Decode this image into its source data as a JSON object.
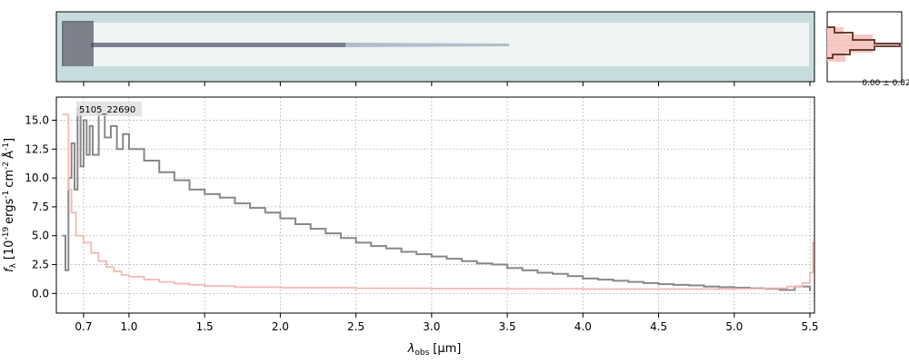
{
  "chart_data": {
    "type": "line",
    "annotation": "5105_22690",
    "xlabel_sym": "λ",
    "xlabel_sub": "obs",
    "xlabel_unit": "[μm]",
    "ylabel_sym": "f",
    "ylabel_sub": "λ",
    "ylabel_unit": "[10",
    "ylabel_exp": "-19",
    "ylabel_rest": "ergs",
    "ylabel_exp2": "-1",
    "ylabel_rest2": "cm",
    "ylabel_exp3": "-2",
    "ylabel_rest3": "Å",
    "ylabel_exp4": "-1",
    "ylabel_close": "]",
    "x_ticks": [
      0.7,
      1.0,
      1.5,
      2.0,
      2.5,
      3.0,
      3.5,
      4.0,
      4.5,
      5.0,
      5.5
    ],
    "x_tick_labels": [
      "0.7",
      "1.0",
      "1.5",
      "2.0",
      "2.5",
      "3.0",
      "3.5",
      "4.0",
      "4.5",
      "5.0",
      "5.5"
    ],
    "y_ticks": [
      0.0,
      2.5,
      5.0,
      7.5,
      10.0,
      12.5,
      15.0
    ],
    "y_tick_labels": [
      "0.0",
      "2.5",
      "5.0",
      "7.5",
      "10.0",
      "12.5",
      "15.0"
    ],
    "xlim": [
      0.52,
      5.53
    ],
    "ylim": [
      -1.7,
      17.0
    ],
    "grid": true,
    "series": [
      {
        "color": "#888888",
        "points": [
          [
            0.56,
            5
          ],
          [
            0.58,
            2
          ],
          [
            0.6,
            10
          ],
          [
            0.62,
            13
          ],
          [
            0.64,
            9
          ],
          [
            0.66,
            16
          ],
          [
            0.68,
            11
          ],
          [
            0.7,
            15
          ],
          [
            0.72,
            12
          ],
          [
            0.74,
            14.5
          ],
          [
            0.76,
            12
          ],
          [
            0.8,
            15.5
          ],
          [
            0.84,
            13.5
          ],
          [
            0.88,
            14.5
          ],
          [
            0.92,
            12.5
          ],
          [
            0.96,
            13.8
          ],
          [
            1.0,
            12.5
          ],
          [
            1.1,
            11.5
          ],
          [
            1.2,
            10.5
          ],
          [
            1.3,
            9.8
          ],
          [
            1.4,
            9.0
          ],
          [
            1.5,
            8.6
          ],
          [
            1.6,
            8.3
          ],
          [
            1.7,
            7.8
          ],
          [
            1.8,
            7.4
          ],
          [
            1.9,
            7.0
          ],
          [
            2.0,
            6.5
          ],
          [
            2.1,
            6.0
          ],
          [
            2.2,
            5.6
          ],
          [
            2.3,
            5.2
          ],
          [
            2.4,
            4.8
          ],
          [
            2.5,
            4.4
          ],
          [
            2.6,
            4.1
          ],
          [
            2.7,
            3.9
          ],
          [
            2.8,
            3.6
          ],
          [
            2.9,
            3.4
          ],
          [
            3.0,
            3.2
          ],
          [
            3.1,
            3.0
          ],
          [
            3.2,
            2.8
          ],
          [
            3.3,
            2.6
          ],
          [
            3.4,
            2.5
          ],
          [
            3.5,
            2.2
          ],
          [
            3.6,
            2.0
          ],
          [
            3.7,
            1.8
          ],
          [
            3.8,
            1.7
          ],
          [
            3.9,
            1.5
          ],
          [
            4.0,
            1.3
          ],
          [
            4.1,
            1.2
          ],
          [
            4.2,
            1.1
          ],
          [
            4.3,
            1.0
          ],
          [
            4.4,
            0.9
          ],
          [
            4.5,
            0.8
          ],
          [
            4.6,
            0.75
          ],
          [
            4.7,
            0.7
          ],
          [
            4.8,
            0.6
          ],
          [
            4.9,
            0.55
          ],
          [
            5.0,
            0.5
          ],
          [
            5.1,
            0.45
          ],
          [
            5.2,
            0.4
          ],
          [
            5.3,
            0.3
          ],
          [
            5.4,
            0.6
          ],
          [
            5.5,
            0.2
          ]
        ]
      },
      {
        "color": "#f5b8b4",
        "points": [
          [
            0.56,
            15.5
          ],
          [
            0.6,
            9
          ],
          [
            0.62,
            7
          ],
          [
            0.65,
            5
          ],
          [
            0.7,
            4.4
          ],
          [
            0.75,
            3.5
          ],
          [
            0.8,
            2.8
          ],
          [
            0.85,
            2.3
          ],
          [
            0.9,
            1.9
          ],
          [
            0.95,
            1.6
          ],
          [
            1.0,
            1.45
          ],
          [
            1.1,
            1.2
          ],
          [
            1.2,
            1.0
          ],
          [
            1.3,
            0.85
          ],
          [
            1.4,
            0.75
          ],
          [
            1.5,
            0.65
          ],
          [
            1.7,
            0.55
          ],
          [
            2.0,
            0.5
          ],
          [
            2.5,
            0.45
          ],
          [
            3.0,
            0.42
          ],
          [
            3.5,
            0.4
          ],
          [
            4.0,
            0.38
          ],
          [
            4.5,
            0.38
          ],
          [
            5.0,
            0.4
          ],
          [
            5.2,
            0.45
          ],
          [
            5.35,
            0.6
          ],
          [
            5.45,
            0.9
          ],
          [
            5.5,
            1.8
          ],
          [
            5.52,
            4.5
          ]
        ]
      }
    ],
    "side_panel_label": "0.00 ± 0.82"
  }
}
